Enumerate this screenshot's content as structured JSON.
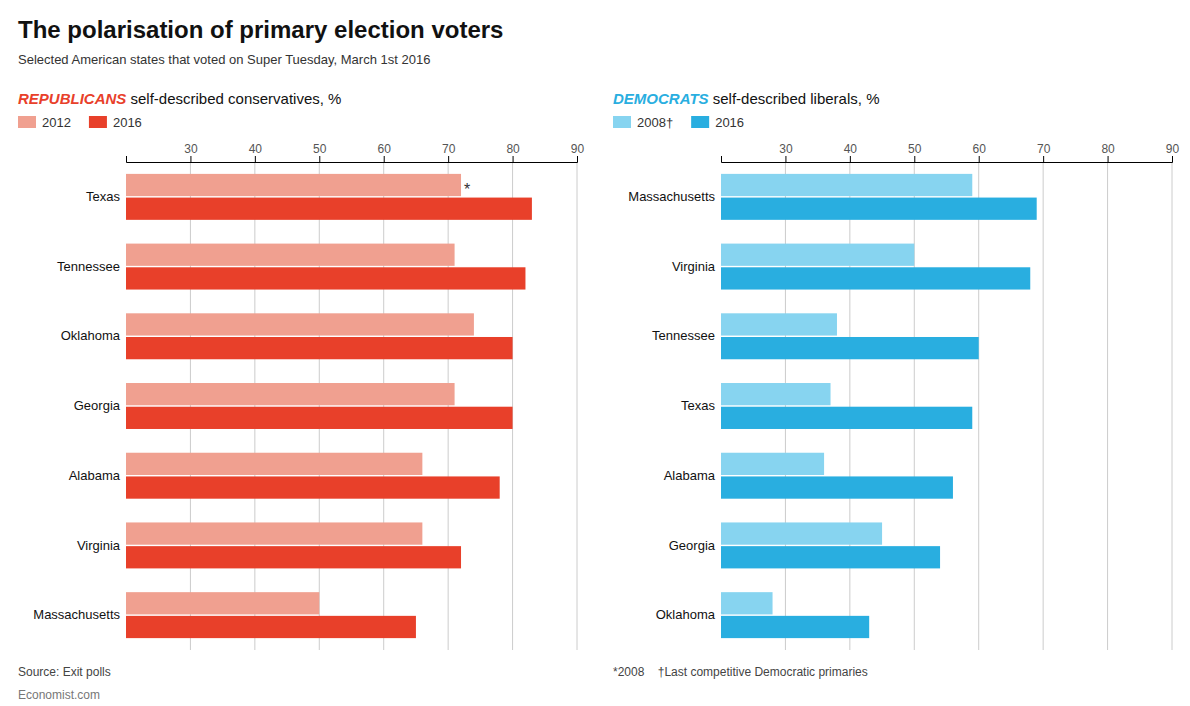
{
  "title": "The polarisation of primary election voters",
  "subtitle": "Selected American states that voted on Super Tuesday, March 1st 2016",
  "source": "Source: Exit polls",
  "footnote": "*2008    †Last competitive Democratic primaries",
  "watermark": "Economist.com",
  "chart_data": [
    {
      "type": "bar",
      "orientation": "horizontal",
      "title": "REPUBLICANS",
      "subtitle": " self-described conservatives, %",
      "categories": [
        "Texas",
        "Tennessee",
        "Oklahoma",
        "Georgia",
        "Alabama",
        "Virginia",
        "Massachusetts"
      ],
      "series": [
        {
          "name": "2012",
          "color": "#f0a090",
          "values": [
            72,
            71,
            74,
            71,
            66,
            66,
            50
          ]
        },
        {
          "name": "2016",
          "color": "#e8402a",
          "values": [
            83,
            82,
            80,
            80,
            78,
            72,
            65
          ]
        }
      ],
      "xlim": [
        20,
        90
      ],
      "xticks": [
        30,
        40,
        50,
        60,
        70,
        80,
        90
      ],
      "grid": true,
      "legend": "top",
      "annotations": [
        {
          "text": "*",
          "x": 72,
          "category": "Texas"
        }
      ]
    },
    {
      "type": "bar",
      "orientation": "horizontal",
      "title": "DEMOCRATS",
      "subtitle": " self-described liberals, %",
      "categories": [
        "Massachusetts",
        "Virginia",
        "Tennessee",
        "Texas",
        "Alabama",
        "Georgia",
        "Oklahoma"
      ],
      "series": [
        {
          "name": "2008†",
          "color": "#87d4f0",
          "values": [
            59,
            50,
            38,
            37,
            36,
            45,
            28
          ]
        },
        {
          "name": "2016",
          "color": "#29aee0",
          "values": [
            69,
            68,
            60,
            59,
            56,
            54,
            43
          ]
        }
      ],
      "xlim": [
        20,
        90
      ],
      "xticks": [
        30,
        40,
        50,
        60,
        70,
        80,
        90
      ],
      "grid": true,
      "legend": "top"
    }
  ]
}
